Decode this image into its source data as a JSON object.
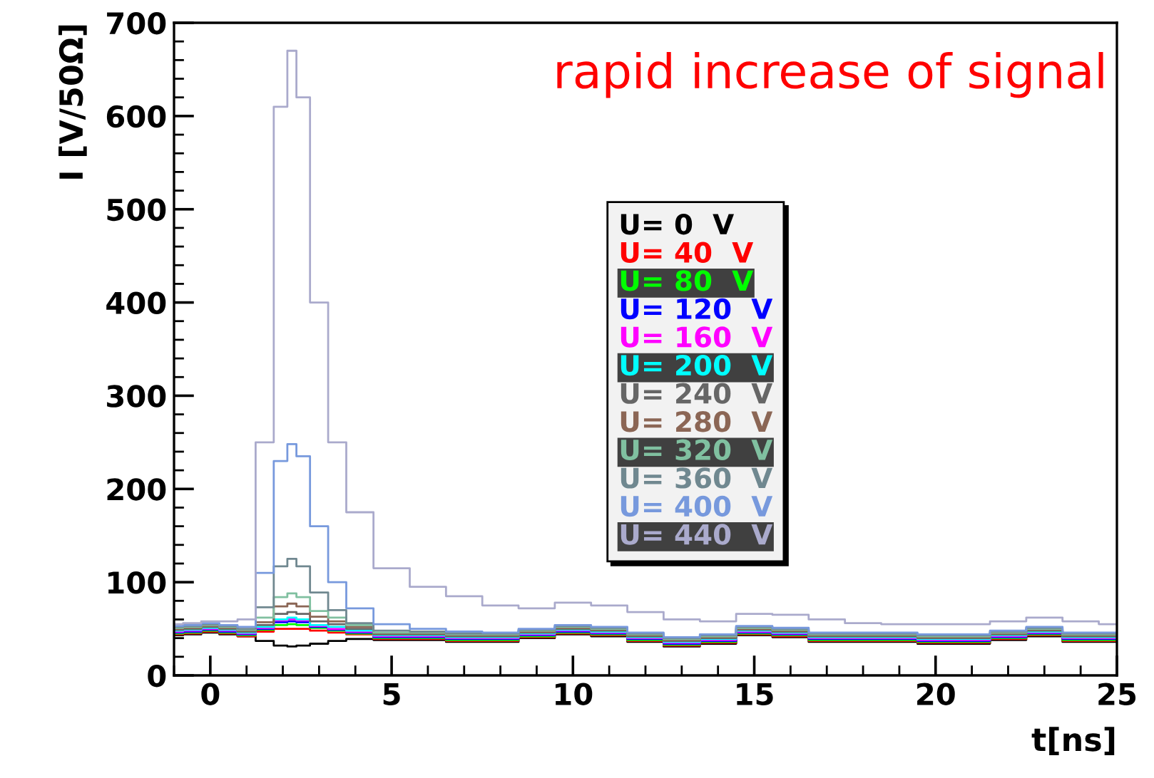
{
  "chart_data": {
    "type": "step",
    "xlabel": "t[ns]",
    "ylabel": "I [V/50Ω]",
    "annotations": [
      "rapid increase of signal"
    ],
    "x": [
      -1,
      -0.5,
      0,
      0.5,
      1,
      1.5,
      2,
      2.25,
      2.5,
      3,
      3.5,
      4,
      5,
      6,
      7,
      8,
      9,
      10,
      11,
      12,
      13,
      14,
      15,
      16,
      17,
      18,
      19,
      20,
      21,
      22,
      23,
      24,
      25
    ],
    "xlim": [
      -1,
      25
    ],
    "xticks": [
      0,
      5,
      10,
      15,
      20,
      25
    ],
    "ylim": [
      0,
      700
    ],
    "yticks": [
      0,
      100,
      200,
      300,
      400,
      500,
      600,
      700
    ],
    "grid": false,
    "legend": "right",
    "series": [
      {
        "name": "U= 0  V",
        "color": "#000000",
        "values": [
          43,
          44,
          46,
          44,
          42,
          37,
          32,
          31,
          32,
          34,
          37,
          39,
          38,
          38,
          36,
          36,
          40,
          44,
          42,
          36,
          31,
          34,
          43,
          41,
          36,
          36,
          36,
          34,
          34,
          38,
          42,
          36,
          36
        ]
      },
      {
        "name": "U= 40  V",
        "color": "#ff0000",
        "values": [
          44,
          45,
          47,
          45,
          42,
          47,
          50,
          50,
          50,
          48,
          46,
          44,
          39,
          39,
          37,
          37,
          41,
          45,
          43,
          37,
          32,
          35,
          44,
          42,
          37,
          37,
          37,
          35,
          35,
          39,
          43,
          37,
          37
        ]
      },
      {
        "name": "U= 80  V",
        "color": "#00ff00",
        "values": [
          45,
          46,
          48,
          46,
          43,
          49,
          54,
          55,
          54,
          51,
          48,
          45,
          40,
          40,
          38,
          38,
          42,
          46,
          44,
          38,
          33,
          36,
          45,
          43,
          38,
          38,
          38,
          36,
          36,
          40,
          44,
          38,
          38
        ]
      },
      {
        "name": "U= 120  V",
        "color": "#0000ff",
        "values": [
          46,
          47,
          49,
          47,
          44,
          50,
          57,
          58,
          57,
          52,
          49,
          46,
          41,
          41,
          39,
          39,
          43,
          47,
          45,
          39,
          34,
          37,
          46,
          44,
          39,
          39,
          39,
          37,
          37,
          41,
          45,
          39,
          39
        ]
      },
      {
        "name": "U= 160  V",
        "color": "#ff00ff",
        "values": [
          47,
          48,
          50,
          48,
          45,
          51,
          59,
          60,
          59,
          53,
          50,
          47,
          42,
          42,
          40,
          40,
          44,
          48,
          46,
          40,
          35,
          38,
          47,
          45,
          40,
          40,
          40,
          38,
          38,
          42,
          46,
          40,
          40
        ]
      },
      {
        "name": "U= 200  V",
        "color": "#00ffff",
        "values": [
          48,
          49,
          51,
          49,
          46,
          52,
          60,
          62,
          60,
          54,
          52,
          48,
          43,
          43,
          41,
          41,
          45,
          49,
          47,
          41,
          36,
          39,
          48,
          46,
          41,
          41,
          41,
          39,
          39,
          43,
          47,
          41,
          41
        ]
      },
      {
        "name": "U= 240  V",
        "color": "#666666",
        "values": [
          49,
          50,
          52,
          50,
          47,
          54,
          66,
          68,
          66,
          58,
          55,
          50,
          44,
          44,
          42,
          42,
          46,
          50,
          48,
          42,
          37,
          40,
          49,
          47,
          42,
          42,
          42,
          40,
          40,
          44,
          48,
          42,
          42
        ]
      },
      {
        "name": "U= 280  V",
        "color": "#8b6655",
        "values": [
          50,
          51,
          53,
          51,
          48,
          57,
          74,
          77,
          74,
          63,
          58,
          52,
          45,
          45,
          43,
          43,
          47,
          51,
          49,
          43,
          38,
          41,
          50,
          48,
          43,
          43,
          43,
          41,
          41,
          45,
          49,
          43,
          43
        ]
      },
      {
        "name": "U= 320  V",
        "color": "#80c0a0",
        "values": [
          51,
          52,
          54,
          52,
          49,
          62,
          84,
          88,
          84,
          69,
          62,
          54,
          46,
          46,
          44,
          44,
          48,
          52,
          50,
          44,
          39,
          42,
          51,
          49,
          44,
          44,
          44,
          42,
          42,
          46,
          50,
          44,
          44
        ]
      },
      {
        "name": "U= 360  V",
        "color": "#708890",
        "values": [
          52,
          53,
          55,
          53,
          50,
          73,
          117,
          125,
          117,
          89,
          70,
          56,
          48,
          47,
          45,
          45,
          49,
          53,
          51,
          45,
          40,
          43,
          52,
          50,
          45,
          45,
          45,
          43,
          43,
          47,
          51,
          45,
          45
        ]
      },
      {
        "name": "U= 400  V",
        "color": "#7799dd",
        "values": [
          53,
          54,
          56,
          54,
          52,
          110,
          230,
          248,
          235,
          160,
          100,
          72,
          55,
          50,
          47,
          46,
          50,
          54,
          52,
          46,
          41,
          44,
          53,
          51,
          46,
          46,
          46,
          44,
          44,
          48,
          52,
          46,
          46
        ]
      },
      {
        "name": "U= 440  V",
        "color": "#aaaacc",
        "values": [
          55,
          56,
          58,
          58,
          60,
          250,
          610,
          670,
          620,
          400,
          250,
          175,
          115,
          95,
          85,
          75,
          72,
          78,
          75,
          68,
          60,
          58,
          66,
          65,
          60,
          56,
          55,
          55,
          55,
          58,
          62,
          58,
          55
        ]
      }
    ]
  }
}
